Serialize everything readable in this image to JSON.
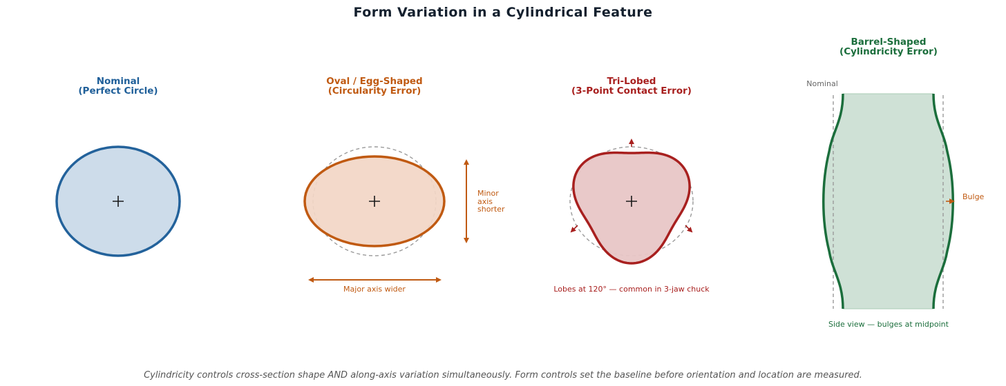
{
  "title": "Form Variation in a Cylindrical Feature",
  "colors": {
    "nominal": "#1f5f99",
    "oval": "#c05a12",
    "trilobed": "#a8201f",
    "barrel": "#1b6e3c",
    "reference": "#9a9a9a"
  },
  "panels": {
    "nominal": {
      "title_line1": "Nominal",
      "title_line2": "(Perfect Circle)"
    },
    "oval": {
      "title_line1": "Oval / Egg-Shaped",
      "title_line2": "(Circularity Error)",
      "minor_label_line1": "Minor",
      "minor_label_line2": "axis",
      "minor_label_line3": "shorter",
      "major_label": "Major axis wider"
    },
    "trilobed": {
      "title_line1": "Tri-Lobed",
      "title_line2": "(3-Point Contact Error)",
      "caption": "Lobes at 120° — common in 3-jaw chuck"
    },
    "barrel": {
      "title_line1": "Barrel-Shaped",
      "title_line2": "(Cylindricity Error)",
      "nominal_label": "Nominal",
      "bulge_label": "Bulge",
      "caption": "Side view — bulges at midpoint"
    }
  },
  "footnote": "Cylindricity controls cross-section shape AND along-axis variation simultaneously.  Form controls set the baseline before orientation and location are measured."
}
